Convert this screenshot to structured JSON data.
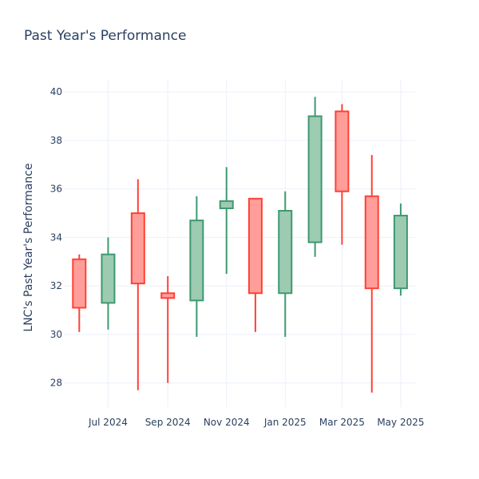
{
  "chart_data": {
    "type": "candlestick",
    "title": "Past Year's Performance",
    "xlabel": "",
    "ylabel": "LNC's Past Year's Performance",
    "x_tick_labels": [
      "Jul 2024",
      "Sep 2024",
      "Nov 2024",
      "Jan 2025",
      "Mar 2025",
      "May 2025"
    ],
    "x_tick_dates": [
      "2024-07-01",
      "2024-09-01",
      "2024-11-01",
      "2025-01-01",
      "2025-03-01",
      "2025-05-01"
    ],
    "x_range": [
      "2024-05-16",
      "2025-05-16"
    ],
    "ylim": [
      27,
      40.5
    ],
    "y_ticks": [
      28,
      30,
      32,
      34,
      36,
      38,
      40
    ],
    "grid": true,
    "colors": {
      "increasing_fill": "#9ccbb2",
      "increasing_line": "#3d9970",
      "decreasing_fill": "#ff9e99",
      "decreasing_line": "#ff4136"
    },
    "candles": [
      {
        "date": "2024-06-01",
        "open": 33.1,
        "high": 33.3,
        "low": 30.1,
        "close": 31.1
      },
      {
        "date": "2024-07-01",
        "open": 31.3,
        "high": 34.0,
        "low": 30.2,
        "close": 33.3
      },
      {
        "date": "2024-08-01",
        "open": 35.0,
        "high": 36.4,
        "low": 27.7,
        "close": 32.1
      },
      {
        "date": "2024-09-01",
        "open": 31.7,
        "high": 32.4,
        "low": 28.0,
        "close": 31.5
      },
      {
        "date": "2024-10-01",
        "open": 31.4,
        "high": 35.7,
        "low": 29.9,
        "close": 34.7
      },
      {
        "date": "2024-11-01",
        "open": 35.2,
        "high": 36.9,
        "low": 32.5,
        "close": 35.5
      },
      {
        "date": "2024-12-01",
        "open": 35.6,
        "high": 35.6,
        "low": 30.1,
        "close": 31.7
      },
      {
        "date": "2025-01-01",
        "open": 31.7,
        "high": 35.9,
        "low": 29.9,
        "close": 35.1
      },
      {
        "date": "2025-02-01",
        "open": 33.8,
        "high": 39.8,
        "low": 33.2,
        "close": 39.0
      },
      {
        "date": "2025-03-01",
        "open": 39.2,
        "high": 39.5,
        "low": 33.7,
        "close": 35.9
      },
      {
        "date": "2025-04-01",
        "open": 35.7,
        "high": 37.4,
        "low": 27.6,
        "close": 31.9
      },
      {
        "date": "2025-05-01",
        "open": 31.9,
        "high": 35.4,
        "low": 31.6,
        "close": 34.9
      }
    ]
  }
}
